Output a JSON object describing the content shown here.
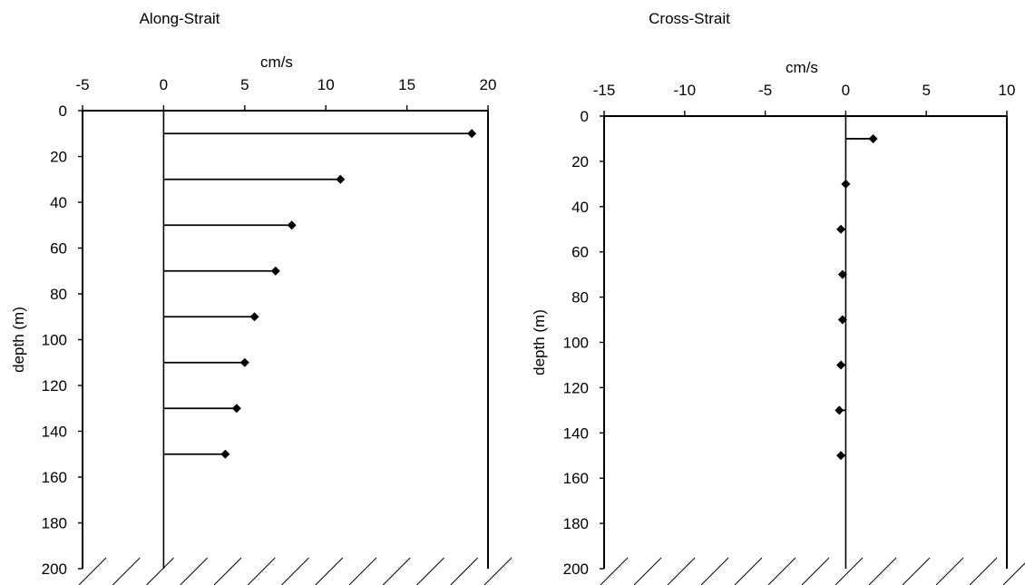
{
  "chart_data": [
    {
      "type": "scatter",
      "title": "Along-Strait",
      "xlabel": "cm/s",
      "ylabel": "depth (m)",
      "xlim": [
        -5,
        20
      ],
      "ylim": [
        0,
        200
      ],
      "x_ticks": [
        "-5",
        "0",
        "5",
        "10",
        "15",
        "20"
      ],
      "y_ticks": [
        "0",
        "20",
        "40",
        "60",
        "80",
        "100",
        "120",
        "140",
        "160",
        "180",
        "200"
      ],
      "depth": [
        10,
        30,
        50,
        70,
        90,
        110,
        130,
        150
      ],
      "values": [
        19.0,
        10.9,
        7.9,
        6.9,
        5.6,
        5.0,
        4.5,
        3.8
      ],
      "y_inverted": true,
      "stem_from_zero": true,
      "hatched_bottom": true,
      "grid": false
    },
    {
      "type": "scatter",
      "title": "Cross-Strait",
      "xlabel": "cm/s",
      "ylabel": "depth (m)",
      "xlim": [
        -15,
        10
      ],
      "ylim": [
        0,
        200
      ],
      "x_ticks": [
        "-15",
        "-10",
        "-5",
        "0",
        "5",
        "10"
      ],
      "y_ticks": [
        "0",
        "20",
        "40",
        "60",
        "80",
        "100",
        "120",
        "140",
        "160",
        "180",
        "200"
      ],
      "depth": [
        10,
        30,
        50,
        70,
        90,
        110,
        130,
        150
      ],
      "values": [
        1.7,
        0.0,
        -0.3,
        -0.2,
        -0.2,
        -0.3,
        -0.4,
        -0.3
      ],
      "y_inverted": true,
      "stem_from_zero": true,
      "hatched_bottom": true,
      "grid": false
    }
  ]
}
